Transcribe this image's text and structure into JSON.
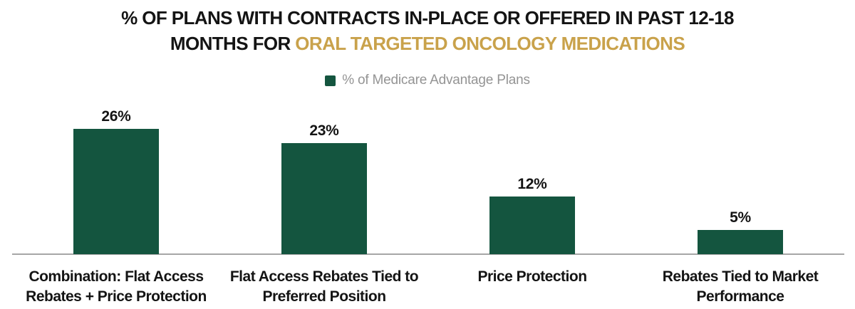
{
  "title": {
    "line1": "% OF PLANS WITH CONTRACTS IN-PLACE OR OFFERED IN PAST 12-18",
    "line2_prefix": "MONTHS FOR ",
    "line2_highlight": "ORAL TARGETED ONCOLOGY MEDICATIONS"
  },
  "legend": {
    "label": "% of Medicare Advantage Plans"
  },
  "colors": {
    "bar": "#14553F",
    "title_highlight": "#C9A24B",
    "legend_text": "#949494",
    "axis_line": "#A6A6A6",
    "text": "#141414"
  },
  "chart_data": {
    "type": "bar",
    "title": "% OF PLANS WITH CONTRACTS IN-PLACE OR OFFERED IN PAST 12-18 MONTHS FOR ORAL TARGETED ONCOLOGY MEDICATIONS",
    "series_name": "% of Medicare Advantage Plans",
    "categories": [
      "Combination: Flat Access Rebates + Price Protection",
      "Flat Access Rebates Tied to Preferred Position",
      "Price Protection",
      "Rebates Tied to Market Performance"
    ],
    "values": [
      26,
      23,
      12,
      5
    ],
    "value_labels": [
      "26%",
      "23%",
      "12%",
      "5%"
    ],
    "xlabel": "",
    "ylabel": "",
    "ylim": [
      0,
      30
    ],
    "grid": false,
    "legend_position": "top",
    "data_labels": true
  }
}
